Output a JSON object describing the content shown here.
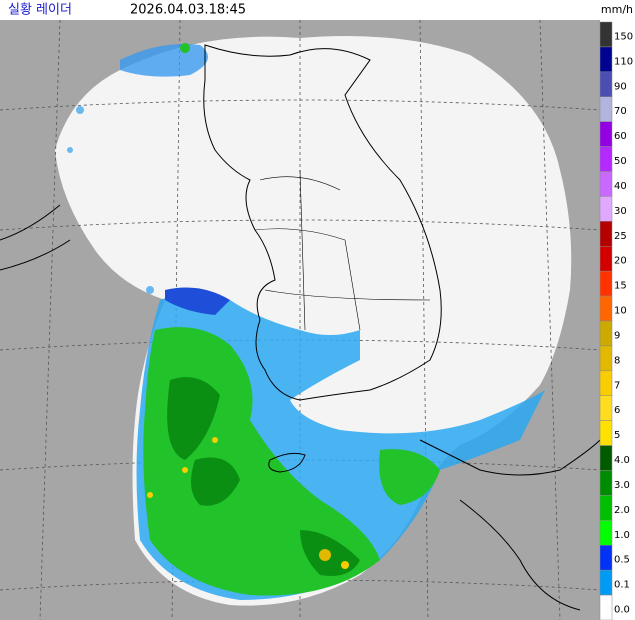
{
  "header": {
    "title": "실황 레이더",
    "timestamp": "2026.04.03.18:45",
    "unit": "mm/h"
  },
  "legend": [
    {
      "label": "150",
      "color": "#333333"
    },
    {
      "label": "110",
      "color": "#000390"
    },
    {
      "label": "90",
      "color": "#4c4eb1"
    },
    {
      "label": "70",
      "color": "#b3b4de"
    },
    {
      "label": "60",
      "color": "#9300e4"
    },
    {
      "label": "50",
      "color": "#b329ff"
    },
    {
      "label": "40",
      "color": "#c969ff"
    },
    {
      "label": "30",
      "color": "#e0a9ff"
    },
    {
      "label": "25",
      "color": "#b40000"
    },
    {
      "label": "20",
      "color": "#d20000"
    },
    {
      "label": "15",
      "color": "#ff3200"
    },
    {
      "label": "10",
      "color": "#ff6600"
    },
    {
      "label": "9",
      "color": "#ccaa00"
    },
    {
      "label": "8",
      "color": "#e0b900"
    },
    {
      "label": "7",
      "color": "#f9cd00"
    },
    {
      "label": "6",
      "color": "#ffdc1f"
    },
    {
      "label": "5",
      "color": "#ffe100"
    },
    {
      "label": "4.0",
      "color": "#005a00"
    },
    {
      "label": "3.0",
      "color": "#008c00"
    },
    {
      "label": "2.0",
      "color": "#00be00"
    },
    {
      "label": "1.0",
      "color": "#00ff00"
    },
    {
      "label": "0.5",
      "color": "#0033f5"
    },
    {
      "label": "0.1",
      "color": "#009bf5"
    },
    {
      "label": "0.0",
      "color": "#ffffff"
    }
  ]
}
